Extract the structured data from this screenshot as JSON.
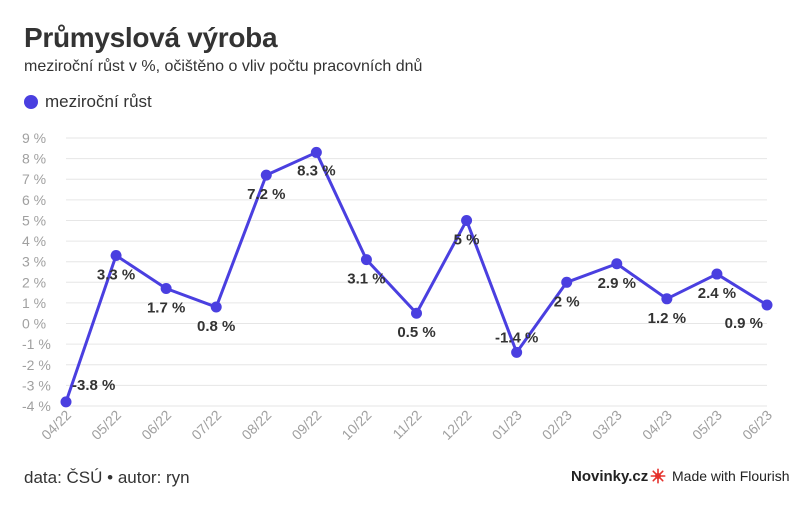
{
  "header": {
    "title": "Průmyslová výroba",
    "subtitle": "meziroční růst v %, očištěno o vliv počtu pracovních dnů"
  },
  "legend": {
    "label": "meziroční růst"
  },
  "footer": {
    "source": "data: ČSÚ • autor: ryn",
    "brand": "Novinky.cz",
    "made_with": "Made with Flourish"
  },
  "colors": {
    "series": "#4a3fe0",
    "grid": "#e6e6e6",
    "axis_text": "#a0a0a0",
    "label_text": "#333333",
    "flourish_red": "#e5322d"
  },
  "chart_data": {
    "type": "line",
    "x": [
      "04/22",
      "05/22",
      "06/22",
      "07/22",
      "08/22",
      "09/22",
      "10/22",
      "11/22",
      "12/22",
      "01/23",
      "02/23",
      "03/23",
      "04/23",
      "05/23",
      "06/23"
    ],
    "series": [
      {
        "name": "meziroční růst",
        "values": [
          -3.8,
          3.3,
          1.7,
          0.8,
          7.2,
          8.3,
          3.1,
          0.5,
          5,
          -1.4,
          2,
          2.9,
          1.2,
          2.4,
          0.9
        ],
        "labels": [
          "-3.8 %",
          "3.3 %",
          "1.7 %",
          "0.8 %",
          "7.2 %",
          "8.3 %",
          "3.1 %",
          "0.5 %",
          "5 %",
          "-1.4 %",
          "2 %",
          "2.9 %",
          "1.2 %",
          "2.4 %",
          "0.9 %"
        ]
      }
    ],
    "ylim": [
      -4,
      9
    ],
    "yticks": [
      -4,
      -3,
      -2,
      -1,
      0,
      1,
      2,
      3,
      4,
      5,
      6,
      7,
      8,
      9
    ],
    "ytick_labels": [
      "-4 %",
      "-3 %",
      "-2 %",
      "-1 %",
      "0 %",
      "1 %",
      "2 %",
      "3 %",
      "4 %",
      "5 %",
      "6 %",
      "7 %",
      "8 %",
      "9 %"
    ],
    "grid": true,
    "legend_position": "top-left"
  }
}
